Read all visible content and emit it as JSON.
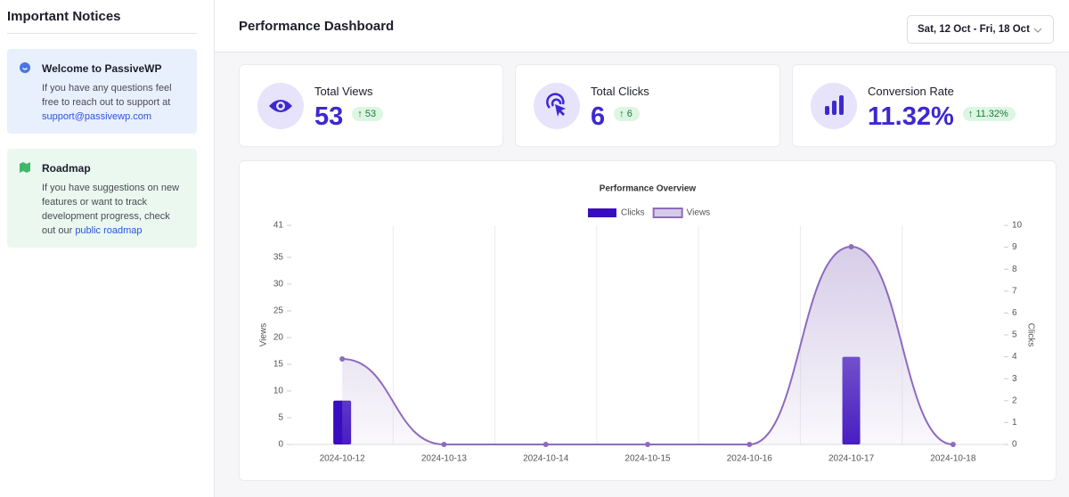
{
  "sidebar": {
    "title": "Important Notices",
    "notices": [
      {
        "title": "Welcome to PassiveWP",
        "text": "If you have any questions feel free to reach out to support at",
        "link": "support@passivewp.com"
      },
      {
        "title": "Roadmap",
        "text": "If you have suggestions on new features or want to track development progress, check out our",
        "link": "public roadmap"
      }
    ]
  },
  "header": {
    "title": "Performance Dashboard",
    "date_range": "Sat, 12 Oct - Fri, 18 Oct"
  },
  "stats": [
    {
      "label": "Total Views",
      "value": "53",
      "change": "53"
    },
    {
      "label": "Total Clicks",
      "value": "6",
      "change": "6"
    },
    {
      "label": "Conversion Rate",
      "value": "11.32%",
      "change": "11.32%"
    }
  ],
  "chart_data": {
    "type": "bar",
    "title": "Performance Overview",
    "categories": [
      "2024-10-12",
      "2024-10-13",
      "2024-10-14",
      "2024-10-15",
      "2024-10-16",
      "2024-10-17",
      "2024-10-18"
    ],
    "series": [
      {
        "name": "Clicks",
        "type": "bar",
        "axis": "y2",
        "color": "#3a0cbf",
        "values": [
          2,
          0,
          0,
          0,
          0,
          4,
          0
        ]
      },
      {
        "name": "Views",
        "type": "line",
        "axis": "y",
        "color": "#8d6bbd",
        "values": [
          16,
          0,
          0,
          0,
          0,
          37,
          0
        ]
      }
    ],
    "ylabel": "Views",
    "y2label": "Clicks",
    "ylim": [
      0,
      41
    ],
    "yticks": [
      0,
      5,
      10,
      15,
      20,
      25,
      30,
      35,
      41
    ],
    "y2lim": [
      0,
      10
    ],
    "y2ticks": [
      0,
      1,
      2,
      3,
      4,
      5,
      6,
      7,
      8,
      9,
      10
    ],
    "grid": true,
    "legend": "top"
  }
}
